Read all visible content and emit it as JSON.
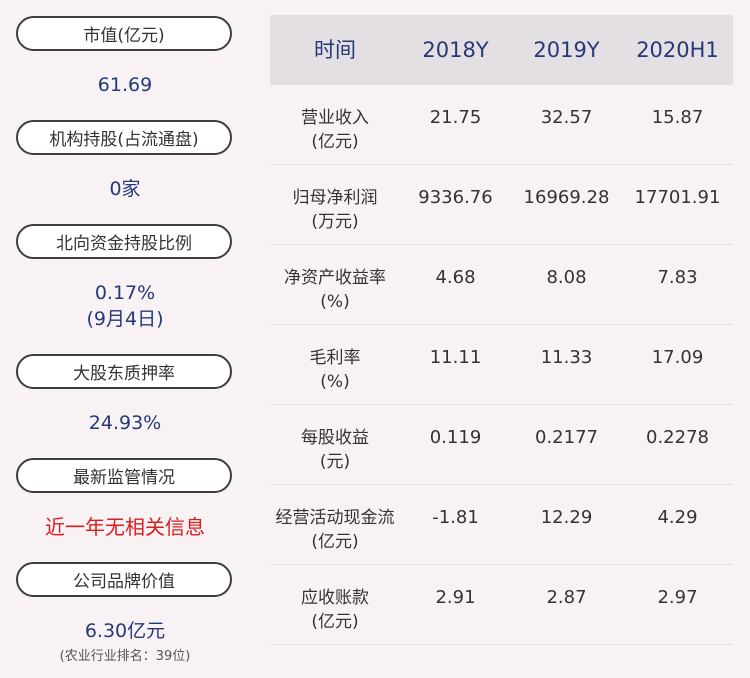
{
  "left": [
    {
      "label": "市值(亿元)",
      "value": "61.69"
    },
    {
      "label": "机构持股(占流通盘)",
      "value": "0家"
    },
    {
      "label": "北向资金持股比例",
      "value": "0.17%",
      "value2": "(9月4日)"
    },
    {
      "label": "大股东质押率",
      "value": "24.93%"
    },
    {
      "label": "最新监管情况",
      "value": "近一年无相关信息"
    },
    {
      "label": "公司品牌价值",
      "value": "6.30亿元",
      "note": "(农业行业排名：39位)"
    }
  ],
  "table": {
    "headers": [
      "时间",
      "2018Y",
      "2019Y",
      "2020H1"
    ],
    "rows": [
      {
        "label": "营业收入",
        "unit": "(亿元)",
        "values": [
          "21.75",
          "32.57",
          "15.87"
        ]
      },
      {
        "label": "归母净利润",
        "unit": "(万元)",
        "values": [
          "9336.76",
          "16969.28",
          "17701.91"
        ]
      },
      {
        "label": "净资产收益率",
        "unit": "(%)",
        "values": [
          "4.68",
          "8.08",
          "7.83"
        ]
      },
      {
        "label": "毛利率",
        "unit": "(%)",
        "values": [
          "11.11",
          "11.33",
          "17.09"
        ]
      },
      {
        "label": "每股收益",
        "unit": "(元)",
        "values": [
          "0.119",
          "0.2177",
          "0.2278"
        ]
      },
      {
        "label": "经营活动现金流",
        "unit": "(亿元)",
        "values": [
          "-1.81",
          "12.29",
          "4.29"
        ]
      },
      {
        "label": "应收账款",
        "unit": "(亿元)",
        "values": [
          "2.91",
          "2.87",
          "2.97"
        ]
      }
    ]
  }
}
